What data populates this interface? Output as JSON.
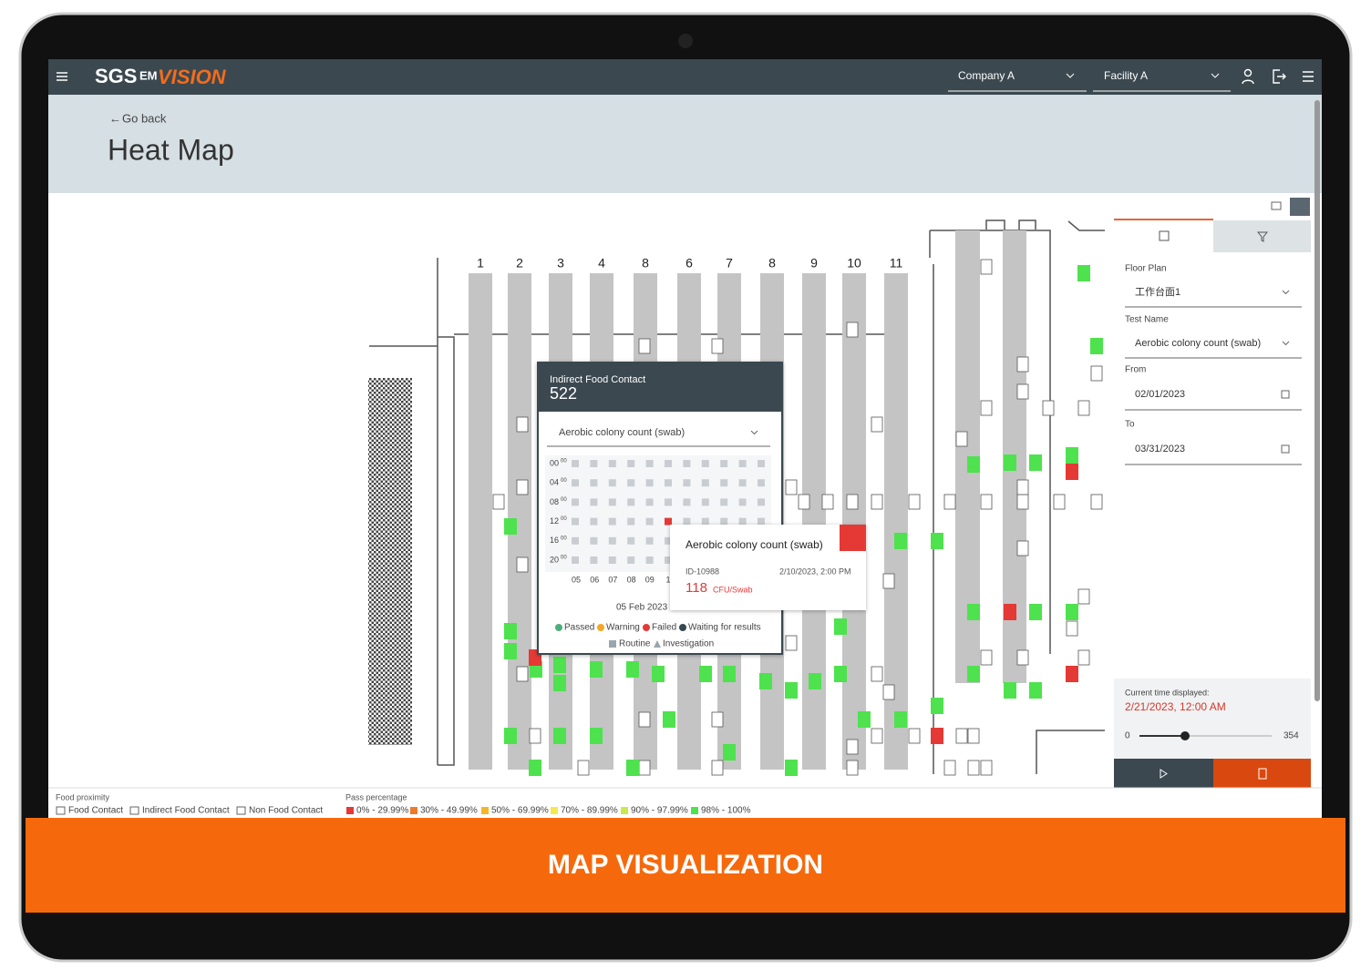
{
  "header": {
    "logo": "SGS",
    "product_prefix": "EM",
    "product": "VISION",
    "company": "Company A",
    "facility": "Facility A"
  },
  "page": {
    "back": "Go back",
    "title": "Heat Map"
  },
  "floor_plan": {
    "column_labels": [
      "1",
      "2",
      "3",
      "4",
      "8",
      "6",
      "7",
      "8",
      "9",
      "10",
      "11"
    ]
  },
  "popup": {
    "label": "Indirect Food Contact",
    "id": "522",
    "test": "Aerobic colony count (swab)",
    "hours": [
      "00",
      "04",
      "08",
      "12",
      "16",
      "20"
    ],
    "minutes": "00",
    "days": [
      "05",
      "06",
      "07",
      "08",
      "09",
      "1"
    ],
    "date": "05 Feb 2023",
    "statuses": [
      "Passed",
      "Warning",
      "Failed",
      "Waiting for results"
    ],
    "types": [
      "Routine",
      "Investigation"
    ]
  },
  "tooltip": {
    "test": "Aerobic colony count (swab)",
    "id": "ID-10988",
    "datetime": "2/10/2023, 2:00 PM",
    "value": "118",
    "unit": "CFU/Swab"
  },
  "sidebar": {
    "floor_plan_label": "Floor Plan",
    "floor_plan": "工作台面1",
    "test_name_label": "Test Name",
    "test_name": "Aerobic colony count (swab)",
    "from_label": "From",
    "from": "02/01/2023",
    "to_label": "To",
    "to": "03/31/2023",
    "current_label": "Current time displayed:",
    "current": "2/21/2023, 12:00 AM",
    "slider_min": "0",
    "slider_max": "354"
  },
  "footer": {
    "food_proximity_title": "Food proximity",
    "food_proximity": [
      "Food Contact",
      "Indirect Food Contact",
      "Non Food Contact"
    ],
    "pass_title": "Pass percentage",
    "pass": [
      {
        "label": "0% - 29.99%",
        "color": "#e53935"
      },
      {
        "label": "30% - 49.99%",
        "color": "#f07a2c"
      },
      {
        "label": "50% - 69.99%",
        "color": "#f5b52a"
      },
      {
        "label": "70% - 89.99%",
        "color": "#f3e94a"
      },
      {
        "label": "90% - 97.99%",
        "color": "#c9e84a"
      },
      {
        "label": "98% - 100%",
        "color": "#4ee24e"
      }
    ]
  },
  "banner": {
    "text": "MAP VISUALIZATION"
  }
}
